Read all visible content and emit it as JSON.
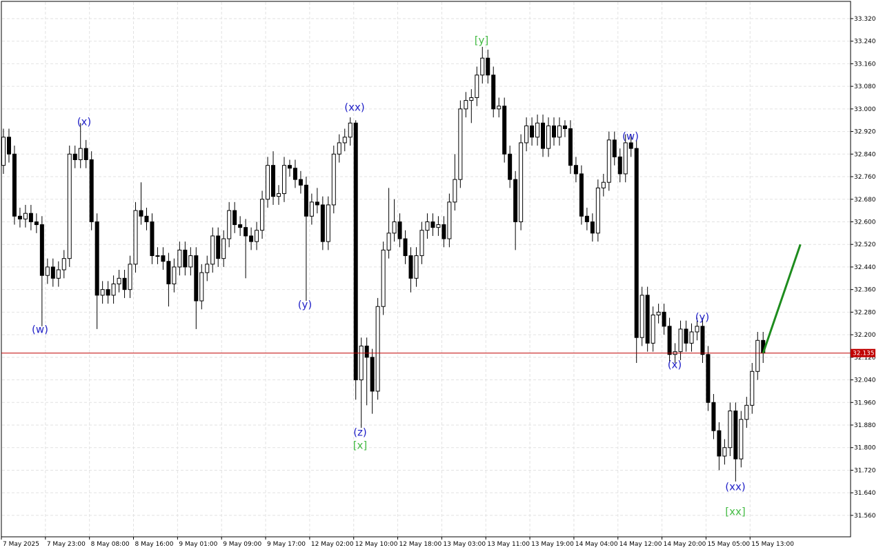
{
  "chart_data": {
    "type": "candlestick",
    "ylim": [
      31.484,
      33.381
    ],
    "yticks": [
      {
        "value": 31.56,
        "label": "31.560"
      },
      {
        "value": 31.64,
        "label": "31.640"
      },
      {
        "value": 31.72,
        "label": "31.720"
      },
      {
        "value": 31.8,
        "label": "31.800"
      },
      {
        "value": 31.88,
        "label": "31.880"
      },
      {
        "value": 31.96,
        "label": "31.960"
      },
      {
        "value": 32.04,
        "label": "32.040"
      },
      {
        "value": 32.12,
        "label": "32.120"
      },
      {
        "value": 32.2,
        "label": "32.200"
      },
      {
        "value": 32.28,
        "label": "32.280"
      },
      {
        "value": 32.36,
        "label": "32.360"
      },
      {
        "value": 32.44,
        "label": "32.440"
      },
      {
        "value": 32.52,
        "label": "32.520"
      },
      {
        "value": 32.6,
        "label": "32.600"
      },
      {
        "value": 32.68,
        "label": "32.680"
      },
      {
        "value": 32.76,
        "label": "32.760"
      },
      {
        "value": 32.84,
        "label": "32.840"
      },
      {
        "value": 32.92,
        "label": "32.920"
      },
      {
        "value": 33.0,
        "label": "33.000"
      },
      {
        "value": 33.08,
        "label": "33.080"
      },
      {
        "value": 33.16,
        "label": "33.160"
      },
      {
        "value": 33.24,
        "label": "33.240"
      },
      {
        "value": 33.32,
        "label": "33.320"
      }
    ],
    "grid": true,
    "up_color": "#ffffff",
    "down_color": "#000000",
    "categories": [
      "7 May 2025",
      null,
      null,
      null,
      null,
      null,
      null,
      null,
      "7 May 23:00",
      null,
      null,
      null,
      null,
      null,
      null,
      null,
      "8 May 08:00",
      null,
      null,
      null,
      null,
      null,
      null,
      null,
      "8 May 16:00",
      null,
      null,
      null,
      null,
      null,
      null,
      null,
      "9 May 01:00",
      null,
      null,
      null,
      null,
      null,
      null,
      null,
      "9 May 09:00",
      null,
      null,
      null,
      null,
      null,
      null,
      null,
      "9 May 17:00",
      null,
      null,
      null,
      null,
      null,
      null,
      null,
      "12 May 02:00",
      null,
      null,
      null,
      null,
      null,
      null,
      null,
      "12 May 10:00",
      null,
      null,
      null,
      null,
      null,
      null,
      null,
      "12 May 18:00",
      null,
      null,
      null,
      null,
      null,
      null,
      null,
      "13 May 03:00",
      null,
      null,
      null,
      null,
      null,
      null,
      null,
      "13 May 11:00",
      null,
      null,
      null,
      null,
      null,
      null,
      null,
      "13 May 19:00",
      null,
      null,
      null,
      null,
      null,
      null,
      null,
      "14 May 04:00",
      null,
      null,
      null,
      null,
      null,
      null,
      null,
      "14 May 12:00",
      null,
      null,
      null,
      null,
      null,
      null,
      null,
      "14 May 20:00",
      null,
      null,
      null,
      null,
      null,
      null,
      null,
      "15 May 05:00",
      null,
      null,
      null,
      null,
      null,
      null,
      null,
      "15 May 13:00",
      null,
      null
    ],
    "open": [
      32.8,
      32.9,
      32.84,
      32.62,
      32.61,
      32.63,
      32.6,
      32.59,
      32.41,
      32.44,
      32.4,
      32.43,
      32.47,
      32.84,
      32.82,
      32.86,
      32.82,
      32.6,
      32.34,
      32.36,
      32.34,
      32.38,
      32.4,
      32.36,
      32.45,
      32.64,
      32.62,
      32.6,
      32.48,
      32.48,
      32.46,
      32.38,
      32.44,
      32.5,
      32.44,
      32.48,
      32.32,
      32.42,
      32.45,
      32.55,
      32.47,
      32.54,
      32.64,
      32.59,
      32.58,
      32.55,
      32.53,
      32.57,
      32.68,
      32.8,
      32.69,
      32.7,
      32.8,
      32.79,
      32.75,
      32.73,
      32.62,
      32.67,
      32.66,
      32.53,
      32.66,
      32.84,
      32.88,
      32.9,
      32.95,
      32.04,
      32.16,
      32.12,
      32.0,
      32.3,
      32.5,
      32.56,
      32.6,
      32.54,
      32.48,
      32.4,
      32.48,
      32.57,
      32.6,
      32.58,
      32.59,
      32.54,
      32.67,
      32.75,
      33.0,
      33.03,
      33.04,
      33.12,
      33.18,
      33.12,
      33.0,
      33.01,
      32.84,
      32.75,
      32.6,
      32.88,
      32.94,
      32.9,
      32.95,
      32.86,
      32.94,
      32.9,
      32.94,
      32.93,
      32.8,
      32.77,
      32.62,
      32.6,
      32.56,
      32.72,
      32.74,
      32.89,
      32.83,
      32.77,
      32.88,
      32.86,
      32.19,
      32.34,
      32.17,
      32.27,
      32.28,
      32.23,
      32.13,
      32.14,
      32.22,
      32.17,
      32.21,
      32.23,
      32.13,
      31.96,
      31.86,
      31.77,
      31.8,
      31.93,
      31.76,
      31.9,
      31.95,
      32.07,
      32.18
    ],
    "high": [
      32.93,
      32.93,
      32.87,
      32.65,
      32.66,
      32.66,
      32.63,
      32.62,
      32.47,
      32.47,
      32.46,
      32.5,
      32.87,
      32.87,
      32.95,
      32.89,
      32.85,
      32.63,
      32.39,
      32.39,
      32.41,
      32.43,
      32.43,
      32.48,
      32.67,
      32.74,
      32.65,
      32.63,
      32.51,
      32.51,
      32.49,
      32.47,
      32.53,
      32.53,
      32.51,
      32.51,
      32.45,
      32.48,
      32.58,
      32.58,
      32.57,
      32.67,
      32.67,
      32.62,
      32.61,
      32.58,
      32.6,
      32.71,
      32.83,
      32.85,
      32.73,
      32.83,
      32.82,
      32.82,
      32.78,
      32.76,
      32.7,
      32.72,
      32.69,
      32.69,
      32.87,
      32.91,
      32.93,
      32.97,
      32.96,
      32.19,
      32.19,
      32.15,
      32.33,
      32.53,
      32.72,
      32.68,
      32.63,
      32.57,
      32.51,
      32.51,
      32.6,
      32.63,
      32.63,
      32.62,
      32.62,
      32.7,
      32.84,
      33.03,
      33.06,
      33.07,
      33.15,
      33.22,
      33.21,
      33.15,
      33.04,
      33.04,
      32.87,
      32.78,
      32.91,
      32.97,
      32.97,
      32.98,
      32.98,
      32.97,
      32.97,
      32.97,
      32.96,
      32.96,
      32.83,
      32.8,
      32.65,
      32.63,
      32.75,
      32.77,
      32.92,
      32.92,
      32.86,
      32.91,
      32.91,
      32.89,
      32.37,
      32.37,
      32.3,
      32.31,
      32.31,
      32.26,
      32.17,
      32.25,
      32.25,
      32.24,
      32.26,
      32.26,
      32.16,
      31.99,
      31.89,
      31.83,
      31.96,
      31.96,
      31.93,
      31.98,
      32.1,
      32.21,
      32.21
    ],
    "low": [
      32.77,
      32.81,
      32.59,
      32.58,
      32.58,
      32.57,
      32.56,
      32.23,
      32.38,
      32.37,
      32.37,
      32.4,
      32.44,
      32.79,
      32.79,
      32.79,
      32.57,
      32.22,
      32.31,
      32.31,
      32.31,
      32.35,
      32.33,
      32.33,
      32.42,
      32.59,
      32.57,
      32.45,
      32.45,
      32.43,
      32.3,
      32.35,
      32.41,
      32.41,
      32.41,
      32.22,
      32.29,
      32.39,
      32.42,
      32.44,
      32.44,
      32.51,
      32.56,
      32.55,
      32.4,
      32.5,
      32.5,
      32.54,
      32.65,
      32.66,
      32.66,
      32.67,
      32.76,
      32.72,
      32.7,
      32.32,
      32.59,
      32.63,
      32.5,
      32.5,
      32.63,
      32.81,
      32.85,
      32.87,
      31.97,
      31.87,
      31.95,
      31.92,
      31.97,
      32.27,
      32.47,
      32.53,
      32.51,
      32.45,
      32.35,
      32.37,
      32.45,
      32.54,
      32.55,
      32.55,
      32.51,
      32.51,
      32.64,
      32.72,
      32.97,
      32.95,
      33.01,
      33.09,
      33.09,
      32.97,
      32.97,
      32.81,
      32.72,
      32.5,
      32.57,
      32.85,
      32.87,
      32.87,
      32.83,
      32.83,
      32.87,
      32.87,
      32.9,
      32.77,
      32.74,
      32.59,
      32.57,
      32.53,
      32.53,
      32.69,
      32.71,
      32.8,
      32.74,
      32.74,
      32.83,
      32.1,
      32.16,
      32.14,
      32.14,
      32.24,
      32.2,
      32.1,
      32.1,
      32.11,
      32.14,
      32.14,
      32.18,
      32.1,
      31.93,
      31.83,
      31.72,
      31.74,
      31.77,
      31.68,
      31.73,
      31.87,
      31.92,
      32.04,
      32.1
    ],
    "close": [
      32.9,
      32.84,
      32.62,
      32.61,
      32.63,
      32.6,
      32.59,
      32.41,
      32.44,
      32.4,
      32.43,
      32.47,
      32.84,
      32.82,
      32.86,
      32.82,
      32.6,
      32.34,
      32.36,
      32.34,
      32.38,
      32.4,
      32.36,
      32.45,
      32.64,
      32.62,
      32.6,
      32.48,
      32.48,
      32.46,
      32.38,
      32.44,
      32.5,
      32.44,
      32.48,
      32.32,
      32.42,
      32.45,
      32.55,
      32.47,
      32.54,
      32.64,
      32.59,
      32.58,
      32.55,
      32.53,
      32.57,
      32.68,
      32.8,
      32.69,
      32.7,
      32.8,
      32.79,
      32.75,
      32.73,
      32.62,
      32.67,
      32.66,
      32.53,
      32.66,
      32.84,
      32.88,
      32.9,
      32.95,
      32.04,
      32.16,
      32.12,
      32.0,
      32.3,
      32.5,
      32.56,
      32.6,
      32.54,
      32.48,
      32.4,
      32.48,
      32.57,
      32.6,
      32.58,
      32.59,
      32.54,
      32.67,
      32.75,
      33.0,
      33.03,
      33.04,
      33.12,
      33.18,
      33.12,
      33.0,
      33.01,
      32.84,
      32.75,
      32.6,
      32.88,
      32.94,
      32.9,
      32.95,
      32.86,
      32.94,
      32.9,
      32.94,
      32.93,
      32.8,
      32.77,
      32.62,
      32.6,
      32.56,
      32.72,
      32.74,
      32.89,
      32.83,
      32.77,
      32.88,
      32.86,
      32.19,
      32.34,
      32.17,
      32.27,
      32.28,
      32.23,
      32.13,
      32.14,
      32.22,
      32.17,
      32.21,
      32.23,
      32.13,
      31.96,
      31.86,
      31.77,
      31.8,
      31.93,
      31.76,
      31.9,
      31.95,
      32.07,
      32.18,
      32.135
    ],
    "last_price": 32.135,
    "last_price_color": "#c00000",
    "forecast_line": {
      "color": "#1e8c1e",
      "values": [
        32.135,
        32.52
      ]
    },
    "annotations": [
      {
        "text": "(w)",
        "color": "#2323c8"
      },
      {
        "text": "(x)",
        "color": "#2323c8"
      },
      {
        "text": "(y)",
        "color": "#2323c8"
      },
      {
        "text": "(xx)",
        "color": "#2323c8"
      },
      {
        "text": "(z)",
        "color": "#2323c8"
      },
      {
        "text": "[x]",
        "color": "#44bb44"
      },
      {
        "text": "[y]",
        "color": "#44bb44"
      },
      {
        "text": "(w)",
        "color": "#2323c8"
      },
      {
        "text": "(x)",
        "color": "#2323c8"
      },
      {
        "text": "(y)",
        "color": "#2323c8"
      },
      {
        "text": "(xx)",
        "color": "#2323c8"
      },
      {
        "text": "[xx]",
        "color": "#44bb44"
      }
    ]
  }
}
